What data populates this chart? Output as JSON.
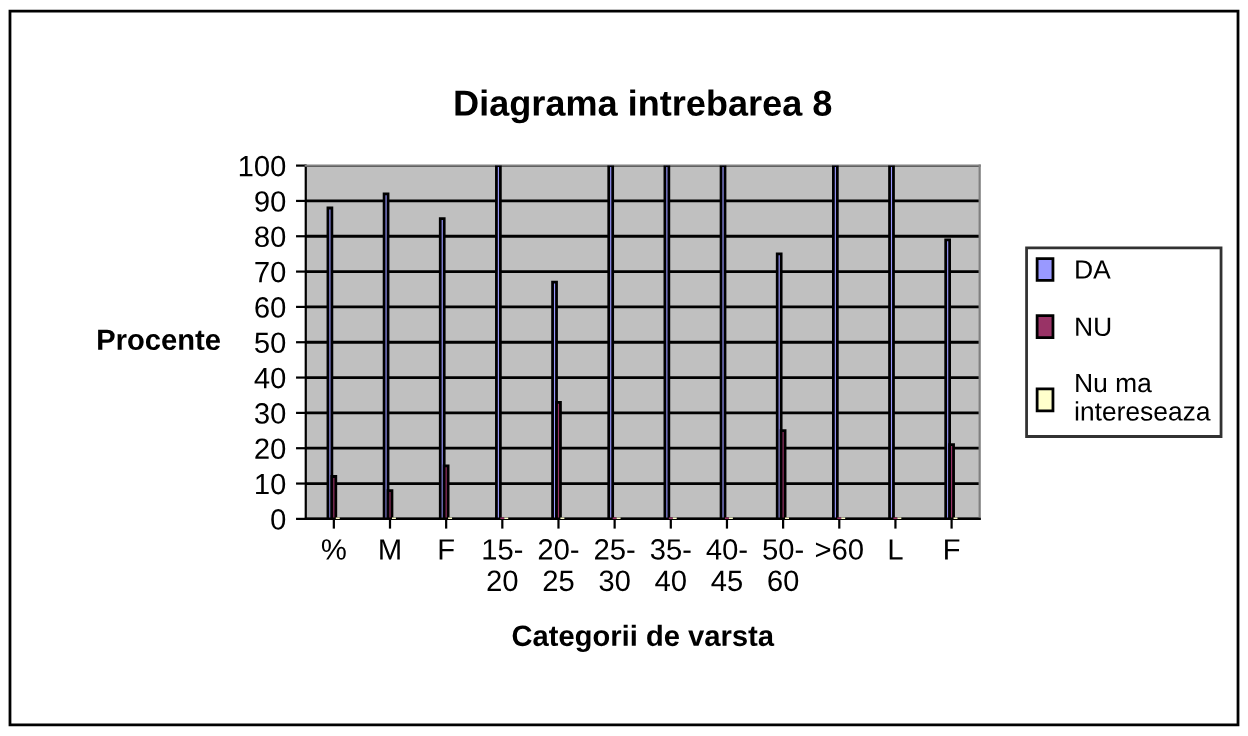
{
  "chart_data": {
    "type": "bar",
    "title": "Diagrama intrebarea 8",
    "xlabel": "Categorii de varsta",
    "ylabel": "Procente",
    "categories": [
      "%",
      "M",
      "F",
      "15-\n20",
      "20-\n25",
      "25-\n30",
      "35-\n40",
      "40-\n45",
      "50-\n60",
      ">60",
      "L",
      "F"
    ],
    "series": [
      {
        "name": "DA",
        "color": "#9999ff",
        "values": [
          88,
          92,
          85,
          100,
          67,
          100,
          100,
          100,
          75,
          100,
          100,
          79
        ]
      },
      {
        "name": "NU",
        "color": "#993366",
        "values": [
          12,
          8,
          15,
          0,
          33,
          0,
          0,
          0,
          25,
          0,
          0,
          21
        ]
      },
      {
        "name": "Nu ma\nintereseaza",
        "color": "#ffffcc",
        "values": [
          0,
          0,
          0,
          0,
          0,
          0,
          0,
          0,
          0,
          0,
          0,
          0
        ]
      }
    ],
    "ylim": [
      0,
      100
    ],
    "yticks": [
      0,
      10,
      20,
      30,
      40,
      50,
      60,
      70,
      80,
      90,
      100
    ],
    "grid": "y",
    "legend": "right"
  }
}
